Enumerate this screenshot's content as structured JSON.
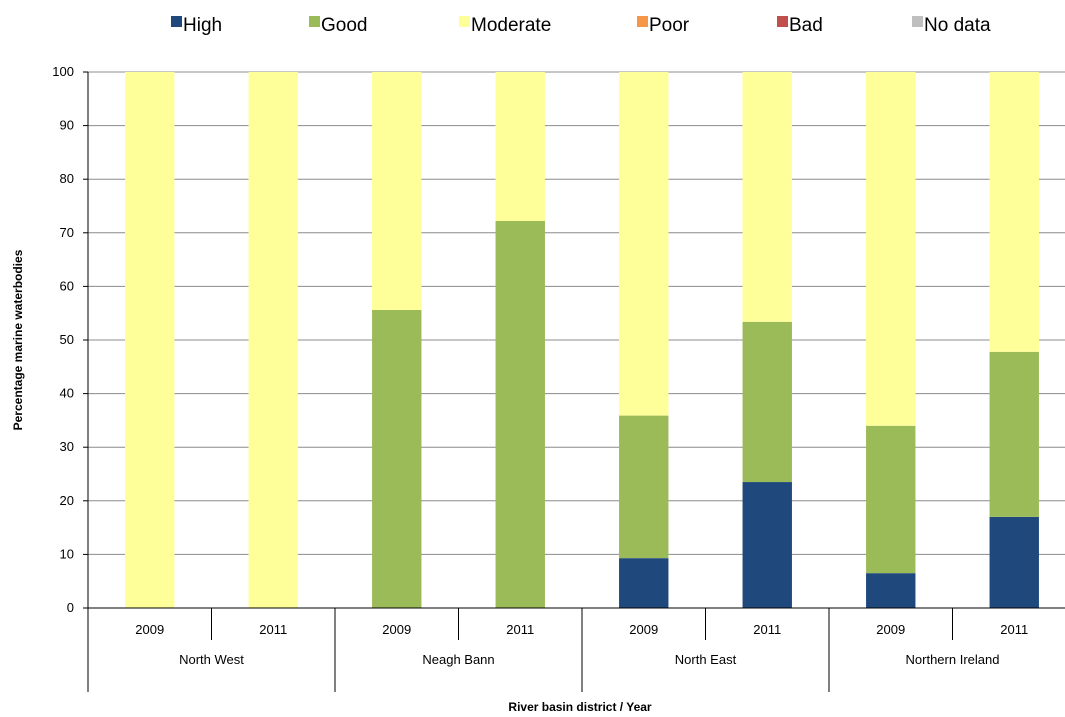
{
  "chart_data": {
    "type": "bar",
    "stacked": true,
    "ylabel": "Percentage marine waterbodies",
    "xlabel": "River basin district / Year",
    "ylim": [
      0,
      100
    ],
    "yticks": [
      0,
      10,
      20,
      30,
      40,
      50,
      60,
      70,
      80,
      90,
      100
    ],
    "grid": true,
    "legend_position": "top",
    "groups": [
      {
        "name": "North West",
        "years": [
          "2009",
          "2011"
        ]
      },
      {
        "name": "Neagh Bann",
        "years": [
          "2009",
          "2011"
        ]
      },
      {
        "name": "North East",
        "years": [
          "2009",
          "2011"
        ]
      },
      {
        "name": "Northern Ireland",
        "years": [
          "2009",
          "2011"
        ]
      }
    ],
    "series": [
      {
        "name": "High",
        "color": "#1f497d",
        "values": [
          0,
          0,
          0,
          0,
          9.3,
          23.5,
          6.5,
          17
        ]
      },
      {
        "name": "Good",
        "color": "#9bbb59",
        "values": [
          0,
          0,
          55.6,
          72.2,
          26.6,
          29.9,
          27.5,
          30.8
        ]
      },
      {
        "name": "Moderate",
        "color": "#ffff99",
        "values": [
          100,
          100,
          44.4,
          27.8,
          64.1,
          46.6,
          66,
          52.2
        ]
      },
      {
        "name": "Poor",
        "color": "#f79646",
        "values": [
          0,
          0,
          0,
          0,
          0,
          0,
          0,
          0
        ]
      },
      {
        "name": "Bad",
        "color": "#c0504d",
        "values": [
          0,
          0,
          0,
          0,
          0,
          0,
          0,
          0
        ]
      },
      {
        "name": "No data",
        "color": "#bfbfbf",
        "values": [
          0,
          0,
          0,
          0,
          0,
          0,
          0,
          0
        ]
      }
    ]
  }
}
